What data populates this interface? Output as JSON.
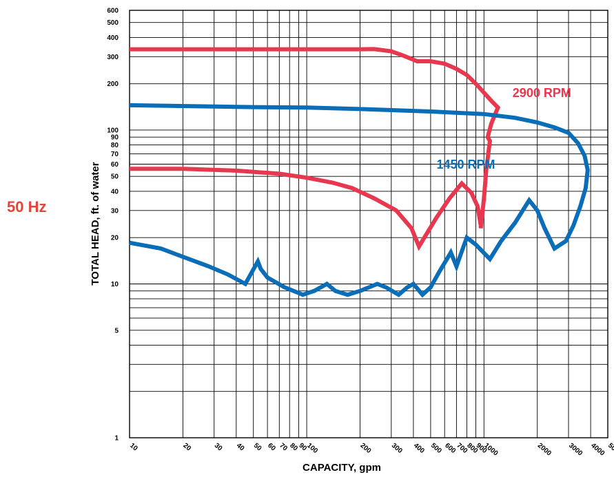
{
  "frequency_label": "50 Hz",
  "colors": {
    "red_series": "#e8384f",
    "blue_series": "#0a6db8",
    "grid": "#000000",
    "frequency_label": "#e8433a"
  },
  "chart_data": {
    "type": "line",
    "xlabel": "CAPACITY, gpm",
    "ylabel": "TOTAL HEAD, ft. of water",
    "x_scale": "log",
    "y_scale": "log",
    "xlim": [
      10,
      5000
    ],
    "ylim": [
      1,
      600
    ],
    "grid": true,
    "x_tick_labels": [
      {
        "value": 10,
        "label": "10"
      },
      {
        "value": 20,
        "label": "20"
      },
      {
        "value": 30,
        "label": "30"
      },
      {
        "value": 40,
        "label": "40"
      },
      {
        "value": 50,
        "label": "50"
      },
      {
        "value": 60,
        "label": "60"
      },
      {
        "value": 70,
        "label": "70"
      },
      {
        "value": 80,
        "label": "80"
      },
      {
        "value": 90,
        "label": "90"
      },
      {
        "value": 100,
        "label": "100"
      },
      {
        "value": 200,
        "label": "200"
      },
      {
        "value": 300,
        "label": "300"
      },
      {
        "value": 400,
        "label": "400"
      },
      {
        "value": 500,
        "label": "500"
      },
      {
        "value": 600,
        "label": "600"
      },
      {
        "value": 700,
        "label": "700"
      },
      {
        "value": 800,
        "label": "800"
      },
      {
        "value": 900,
        "label": "900"
      },
      {
        "value": 1000,
        "label": "1000"
      },
      {
        "value": 2000,
        "label": "2000"
      },
      {
        "value": 3000,
        "label": "3000"
      },
      {
        "value": 4000,
        "label": "4000"
      },
      {
        "value": 5000,
        "label": "5000"
      }
    ],
    "y_tick_labels": [
      {
        "value": 1,
        "label": "1"
      },
      {
        "value": 5,
        "label": "5"
      },
      {
        "value": 10,
        "label": "10"
      },
      {
        "value": 20,
        "label": "20"
      },
      {
        "value": 30,
        "label": "30"
      },
      {
        "value": 40,
        "label": "40"
      },
      {
        "value": 50,
        "label": "50"
      },
      {
        "value": 60,
        "label": "60"
      },
      {
        "value": 70,
        "label": "70"
      },
      {
        "value": 80,
        "label": "80"
      },
      {
        "value": 90,
        "label": "90"
      },
      {
        "value": 100,
        "label": "100"
      },
      {
        "value": 200,
        "label": "200"
      },
      {
        "value": 300,
        "label": "300"
      },
      {
        "value": 400,
        "label": "400"
      },
      {
        "value": 500,
        "label": "500"
      },
      {
        "value": 600,
        "label": "600"
      }
    ],
    "series": [
      {
        "name": "2900 RPM",
        "color": "#e8384f",
        "label_at": [
          1450,
          164
        ],
        "points": [
          [
            10,
            335
          ],
          [
            20,
            335
          ],
          [
            50,
            335
          ],
          [
            100,
            335
          ],
          [
            200,
            335
          ],
          [
            240,
            336
          ],
          [
            300,
            325
          ],
          [
            350,
            305
          ],
          [
            420,
            280
          ],
          [
            500,
            280
          ],
          [
            600,
            270
          ],
          [
            700,
            250
          ],
          [
            800,
            228
          ],
          [
            900,
            200
          ],
          [
            1000,
            175
          ],
          [
            1100,
            155
          ],
          [
            1200,
            140
          ],
          [
            1150,
            125
          ],
          [
            1100,
            110
          ],
          [
            1050,
            90
          ],
          [
            1080,
            85
          ],
          [
            1030,
            55
          ],
          [
            1000,
            36
          ],
          [
            960,
            23
          ],
          [
            960,
            24
          ],
          [
            920,
            32
          ],
          [
            850,
            39
          ],
          [
            750,
            45
          ],
          [
            640,
            36
          ],
          [
            540,
            27
          ],
          [
            430,
            17.5
          ],
          [
            390,
            23
          ],
          [
            320,
            30
          ],
          [
            240,
            36
          ],
          [
            180,
            42
          ],
          [
            140,
            45.5
          ],
          [
            100,
            49
          ],
          [
            70,
            52
          ],
          [
            40,
            54.5
          ],
          [
            20,
            56
          ],
          [
            10,
            56
          ]
        ]
      },
      {
        "name": "1450 RPM",
        "color": "#0a6db8",
        "label_at": [
          540,
          56
        ],
        "points": [
          [
            10,
            145
          ],
          [
            50,
            141
          ],
          [
            100,
            140
          ],
          [
            200,
            137
          ],
          [
            500,
            132
          ],
          [
            1000,
            127
          ],
          [
            1500,
            120
          ],
          [
            2000,
            112
          ],
          [
            2500,
            104
          ],
          [
            3000,
            96
          ],
          [
            3400,
            82
          ],
          [
            3700,
            68
          ],
          [
            3850,
            55
          ],
          [
            3750,
            42
          ],
          [
            3500,
            32
          ],
          [
            3200,
            24
          ],
          [
            2900,
            19
          ],
          [
            2500,
            17
          ],
          [
            2200,
            23
          ],
          [
            2000,
            30
          ],
          [
            1800,
            35
          ],
          [
            1500,
            25
          ],
          [
            1250,
            19
          ],
          [
            1080,
            14.5
          ],
          [
            900,
            18
          ],
          [
            800,
            20
          ],
          [
            760,
            17
          ],
          [
            700,
            13
          ],
          [
            650,
            16
          ],
          [
            560,
            12
          ],
          [
            500,
            9.5
          ],
          [
            450,
            8.5
          ],
          [
            400,
            10
          ],
          [
            370,
            9.5
          ],
          [
            330,
            8.5
          ],
          [
            280,
            9.5
          ],
          [
            250,
            10
          ],
          [
            200,
            9
          ],
          [
            170,
            8.5
          ],
          [
            145,
            9
          ],
          [
            130,
            10
          ],
          [
            110,
            9
          ],
          [
            95,
            8.5
          ],
          [
            75,
            9.5
          ],
          [
            60,
            11
          ],
          [
            55,
            12.5
          ],
          [
            53,
            14
          ],
          [
            45,
            10
          ],
          [
            36,
            11.5
          ],
          [
            28,
            13
          ],
          [
            20,
            15
          ],
          [
            15,
            17
          ],
          [
            10,
            18.5
          ]
        ]
      }
    ]
  }
}
